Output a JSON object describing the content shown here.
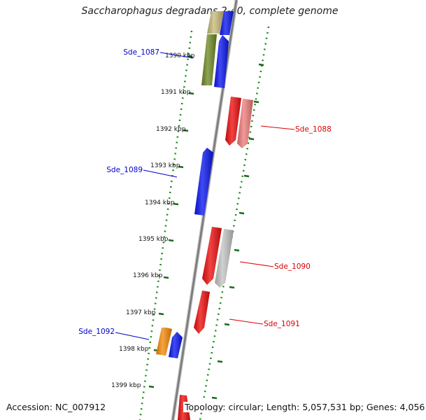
{
  "title": "Saccharophagus degradans 2-40, complete genome",
  "accession": "Accession: NC_007912",
  "summary": "Topology: circular; Length: 5,057,531 bp; Genes: 4,056",
  "ticks": [
    "1390 kbp",
    "1391 kbp",
    "1392 kbp",
    "1393 kbp",
    "1394 kbp",
    "1395 kbp",
    "1396 kbp",
    "1397 kbp",
    "1398 kbp",
    "1399 kbp"
  ],
  "labels": [
    {
      "text": "Sde_1087",
      "strand": "reverse"
    },
    {
      "text": "Sde_1088",
      "strand": "forward"
    },
    {
      "text": "Sde_1089",
      "strand": "reverse"
    },
    {
      "text": "Sde_1090",
      "strand": "forward"
    },
    {
      "text": "Sde_1091",
      "strand": "forward"
    },
    {
      "text": "Sde_1092",
      "strand": "reverse"
    }
  ],
  "features": [
    {
      "color": "#c9bb7a",
      "strand": "reverse"
    },
    {
      "color": "#0a16f0",
      "strand": "reverse"
    },
    {
      "color": "#6f8a25",
      "strand": "reverse"
    },
    {
      "color": "#0a16f0",
      "strand": "reverse"
    },
    {
      "color": "#ee0e0e",
      "strand": "forward"
    },
    {
      "color": "#f07c7c",
      "strand": "forward"
    },
    {
      "color": "#0a16f0",
      "strand": "reverse"
    },
    {
      "color": "#ee0e0e",
      "strand": "forward"
    },
    {
      "color": "#c4c4c4",
      "strand": "forward"
    },
    {
      "color": "#ee0e0e",
      "strand": "forward"
    },
    {
      "color": "#f58a0a",
      "strand": "reverse"
    },
    {
      "color": "#0a16f0",
      "strand": "reverse"
    },
    {
      "color": "#ee0e0e",
      "strand": "forward"
    }
  ],
  "colors": {
    "reverse_label": "#0000cc",
    "forward_label": "#dd0000",
    "tick": "#1a6a1a",
    "backbone": "#8c8c8c"
  }
}
